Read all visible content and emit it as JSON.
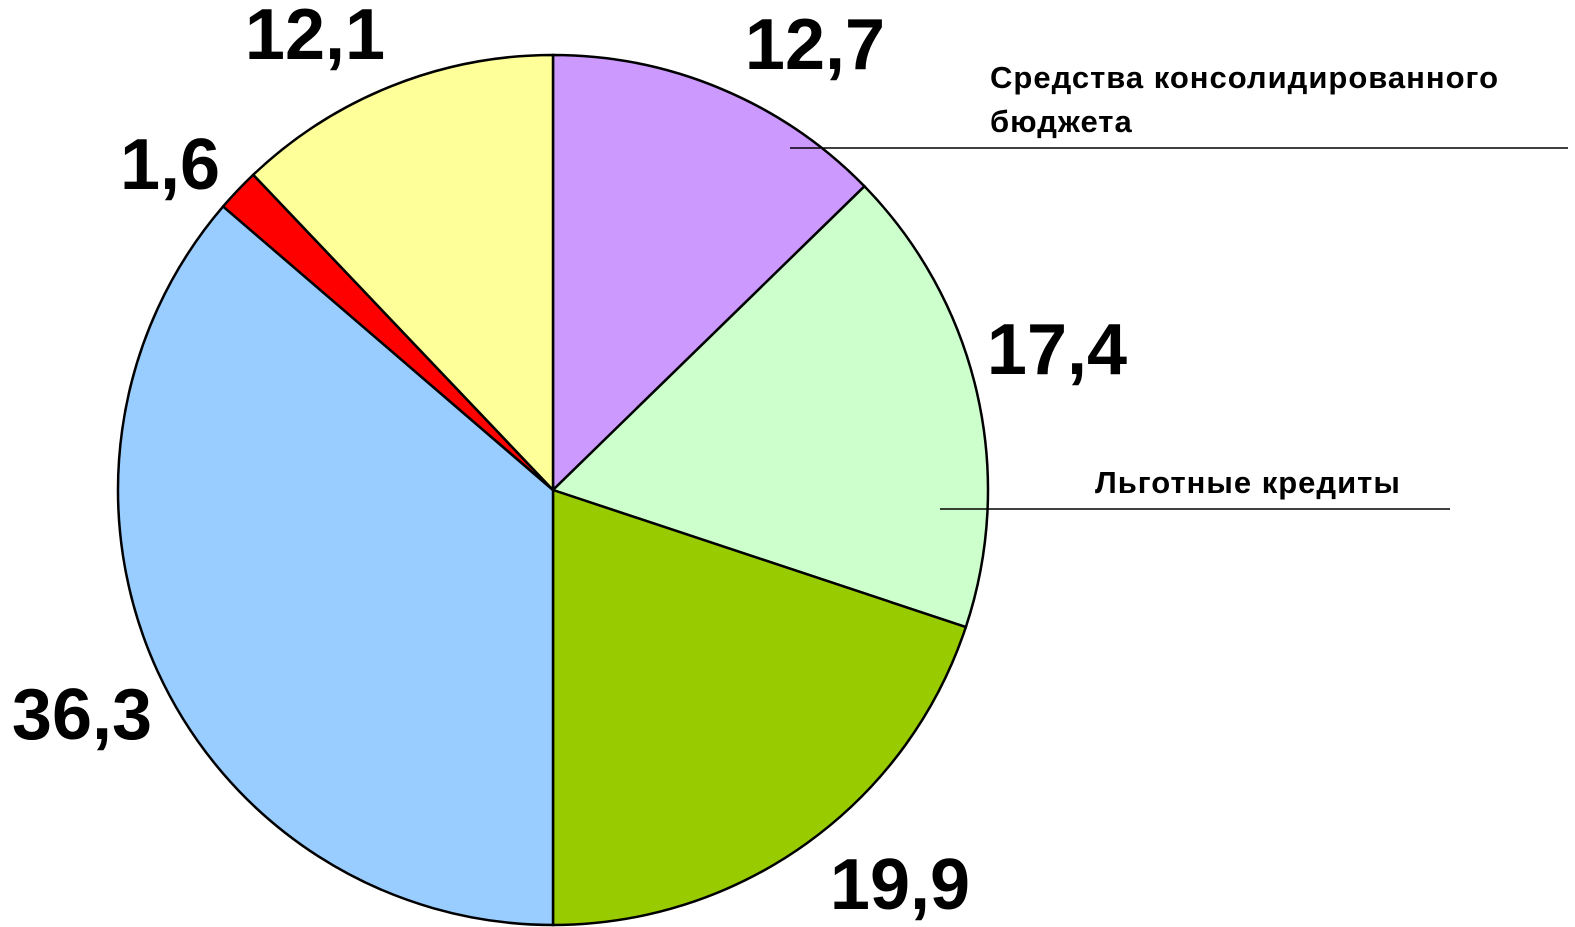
{
  "chart_data": {
    "type": "pie",
    "categories": [
      "Средства консолидированного бюджета",
      "Льготные кредиты",
      null,
      null,
      null,
      null
    ],
    "values": [
      12.7,
      17.4,
      19.9,
      36.3,
      1.6,
      12.1
    ],
    "value_labels": [
      "12,7",
      "17,4",
      "19,9",
      "36,3",
      "1,6",
      "12,1"
    ],
    "colors": [
      "#cc99ff",
      "#ccffcc",
      "#99cc00",
      "#99ccff",
      "#ff0000",
      "#ffff99"
    ]
  }
}
